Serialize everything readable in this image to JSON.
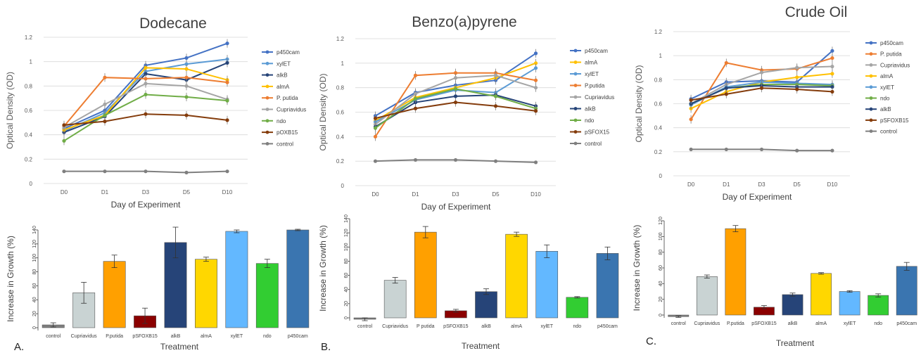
{
  "panel_labels": [
    "A.",
    "B.",
    "C."
  ],
  "colors": {
    "p450cam": "#4472c4",
    "xylET": "#5b9bd5",
    "alkB": "#264478",
    "almA": "#ffc000",
    "P. putida": "#ed7d31",
    "Cupriavidus": "#a5a5a5",
    "ndo": "#70ad47",
    "pOXB15": "#843c0c",
    "control": "#7f7f7f"
  },
  "chart_data": [
    {
      "type": "line",
      "title": "Dodecane",
      "xlabel": "Day of Experiment",
      "ylabel": "Optical Density (OD)",
      "categories": [
        "D0",
        "D1",
        "D3",
        "D5",
        "D10"
      ],
      "ylim": [
        0,
        1.2
      ],
      "yticks": [
        "0",
        "0.2",
        "0.4",
        "0.6",
        "0.8",
        "1",
        "1.2"
      ],
      "legend_position": "right",
      "series": [
        {
          "name": "p450cam",
          "values": [
            0.45,
            0.6,
            0.97,
            1.03,
            1.15
          ]
        },
        {
          "name": "xylET",
          "values": [
            0.43,
            0.58,
            0.92,
            0.98,
            1.02
          ]
        },
        {
          "name": "alkB",
          "values": [
            0.42,
            0.55,
            0.9,
            0.85,
            0.99
          ]
        },
        {
          "name": "almA",
          "values": [
            0.44,
            0.56,
            0.95,
            0.94,
            0.85
          ]
        },
        {
          "name": "P. putida",
          "values": [
            0.47,
            0.87,
            0.86,
            0.87,
            0.83
          ]
        },
        {
          "name": "Cupriavidus",
          "values": [
            0.46,
            0.65,
            0.82,
            0.8,
            0.69
          ]
        },
        {
          "name": "ndo",
          "values": [
            0.35,
            0.56,
            0.73,
            0.71,
            0.68
          ]
        },
        {
          "name": "pOXB15",
          "values": [
            0.48,
            0.51,
            0.57,
            0.56,
            0.52
          ]
        },
        {
          "name": "control",
          "values": [
            0.1,
            0.1,
            0.1,
            0.09,
            0.1
          ]
        }
      ]
    },
    {
      "type": "line",
      "title": "Benzo(a)pyrene",
      "xlabel": "Day of Experiment",
      "ylabel": "Optical Density (OD)",
      "categories": [
        "D0",
        "D1",
        "D3",
        "D5",
        "D10"
      ],
      "ylim": [
        0,
        1.2
      ],
      "yticks": [
        "0",
        "0.2",
        "0.4",
        "0.6",
        "0.8",
        "1",
        "1.2"
      ],
      "legend_position": "right",
      "series": [
        {
          "name": "p450cam",
          "values": [
            0.57,
            0.76,
            0.82,
            0.86,
            1.08
          ]
        },
        {
          "name": "almA",
          "values": [
            0.53,
            0.72,
            0.8,
            0.88,
            1.0
          ]
        },
        {
          "name": "xylET",
          "values": [
            0.52,
            0.7,
            0.78,
            0.76,
            0.96
          ]
        },
        {
          "name": "P.putida",
          "values": [
            0.4,
            0.9,
            0.92,
            0.92,
            0.86
          ]
        },
        {
          "name": "Cupriavidus",
          "values": [
            0.5,
            0.75,
            0.88,
            0.9,
            0.8
          ]
        },
        {
          "name": "alkB",
          "values": [
            0.48,
            0.68,
            0.73,
            0.74,
            0.65
          ]
        },
        {
          "name": "ndo",
          "values": [
            0.47,
            0.71,
            0.79,
            0.73,
            0.63
          ]
        },
        {
          "name": "pSFOX15",
          "values": [
            0.55,
            0.63,
            0.68,
            0.65,
            0.61
          ]
        },
        {
          "name": "control",
          "values": [
            0.2,
            0.21,
            0.21,
            0.2,
            0.19
          ]
        }
      ]
    },
    {
      "type": "line",
      "title": "Crude Oil",
      "xlabel": "Day of Experiment",
      "ylabel": "Optical Density (OD)",
      "categories": [
        "D0",
        "D1",
        "D3",
        "D5",
        "D10"
      ],
      "ylim": [
        0,
        1.2
      ],
      "yticks": [
        "0",
        "0.2",
        "0.4",
        "0.6",
        "0.8",
        "1",
        "1.2"
      ],
      "legend_position": "right",
      "series": [
        {
          "name": "p450cam",
          "values": [
            0.64,
            0.78,
            0.79,
            0.78,
            1.04
          ]
        },
        {
          "name": "P. putida",
          "values": [
            0.47,
            0.94,
            0.88,
            0.89,
            0.98
          ]
        },
        {
          "name": "Cupriavidus",
          "values": [
            0.6,
            0.76,
            0.86,
            0.9,
            0.91
          ]
        },
        {
          "name": "almA",
          "values": [
            0.56,
            0.7,
            0.78,
            0.82,
            0.85
          ]
        },
        {
          "name": "xylET",
          "values": [
            0.59,
            0.74,
            0.78,
            0.77,
            0.76
          ]
        },
        {
          "name": "ndo",
          "values": [
            0.6,
            0.73,
            0.76,
            0.76,
            0.75
          ]
        },
        {
          "name": "alkB",
          "values": [
            0.6,
            0.73,
            0.75,
            0.74,
            0.74
          ]
        },
        {
          "name": "pSFOXB15",
          "values": [
            0.63,
            0.68,
            0.73,
            0.72,
            0.7
          ]
        },
        {
          "name": "control",
          "values": [
            0.22,
            0.22,
            0.22,
            0.21,
            0.21
          ]
        }
      ]
    },
    {
      "type": "bar",
      "xlabel": "Treatment",
      "ylabel": "Increase in Growth (%)",
      "categories": [
        "control",
        "Cupriavidus",
        "P.putida",
        "pSFOXB15",
        "alkB",
        "almA",
        "xylET",
        "ndo",
        "p450cam"
      ],
      "values": [
        4,
        50,
        95,
        17,
        122,
        98,
        138,
        92,
        140
      ],
      "errors": [
        3,
        15,
        9,
        11,
        22,
        3,
        2,
        6,
        1
      ],
      "ylim": [
        0,
        140
      ],
      "yticks": [
        "0",
        "20",
        "40",
        "60",
        "80",
        "100",
        "120",
        "140"
      ]
    },
    {
      "type": "bar",
      "xlabel": "Treatment",
      "ylabel": "Increase in Growth (%)",
      "categories": [
        "control",
        "Cupriavidus",
        "P putida",
        "pSFOXB15",
        "alkB",
        "almA",
        "xylET",
        "ndo",
        "p450cam"
      ],
      "values": [
        -2,
        53,
        121,
        10,
        37,
        118,
        94,
        29,
        91
      ],
      "errors": [
        2,
        4,
        8,
        2,
        4,
        3,
        9,
        1,
        9
      ],
      "ylim": [
        0,
        140
      ],
      "yticks": [
        "0",
        "20",
        "40",
        "60",
        "80",
        "100",
        "120",
        "140"
      ]
    },
    {
      "type": "bar",
      "xlabel": "Treatment",
      "ylabel": "Increase in Growth (%)",
      "categories": [
        "control",
        "Cupriavidus",
        "P.putida",
        "pSFOXB15",
        "alkB",
        "almA",
        "xylET",
        "ndo",
        "p450cam"
      ],
      "values": [
        -2,
        49,
        110,
        10,
        26,
        53,
        30,
        25,
        62
      ],
      "errors": [
        1,
        2,
        4,
        2,
        2,
        1,
        1,
        2,
        5
      ],
      "ylim": [
        0,
        120
      ],
      "yticks": [
        "0",
        "20",
        "40",
        "60",
        "80",
        "100",
        "120"
      ]
    }
  ]
}
